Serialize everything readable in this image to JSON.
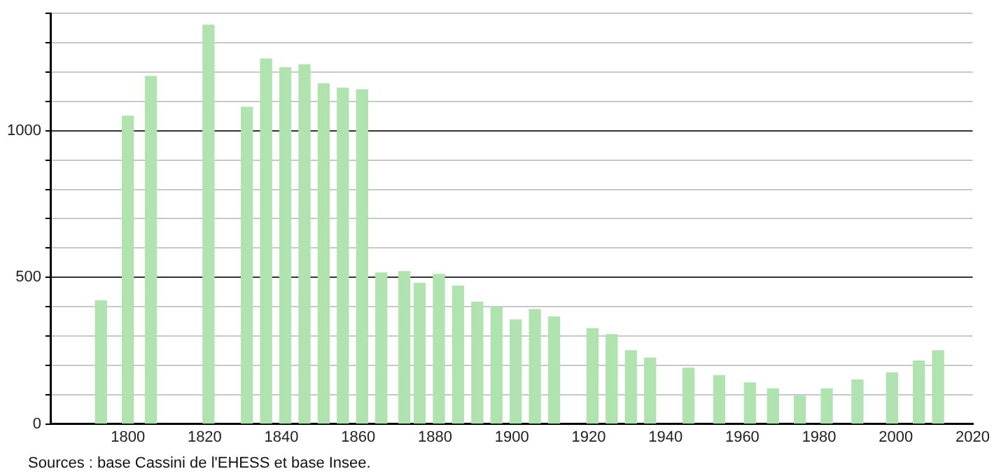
{
  "chart_data": {
    "type": "bar",
    "x": [
      1793,
      1800,
      1806,
      1821,
      1831,
      1836,
      1841,
      1846,
      1851,
      1856,
      1861,
      1866,
      1872,
      1876,
      1881,
      1886,
      1891,
      1896,
      1901,
      1906,
      1911,
      1921,
      1926,
      1931,
      1936,
      1946,
      1954,
      1962,
      1968,
      1975,
      1982,
      1990,
      1999,
      2006,
      2011
    ],
    "values": [
      420,
      1050,
      1185,
      1360,
      1080,
      1245,
      1215,
      1225,
      1160,
      1145,
      1140,
      515,
      520,
      480,
      510,
      470,
      415,
      400,
      355,
      390,
      365,
      325,
      305,
      250,
      225,
      190,
      165,
      140,
      120,
      95,
      120,
      150,
      175,
      215,
      250
    ],
    "color": "#b0e3b0",
    "xlim": [
      1780,
      2020
    ],
    "xticks": [
      1800,
      1820,
      1840,
      1860,
      1880,
      1900,
      1920,
      1940,
      1960,
      1980,
      2000,
      2020
    ],
    "ylim": [
      0,
      1400
    ],
    "yticks": [
      0,
      {
        "value": 100,
        "label": null
      },
      {
        "value": 200,
        "label": null
      },
      {
        "value": 300,
        "label": null
      },
      {
        "value": 400,
        "label": null
      },
      500,
      {
        "value": 600,
        "label": null
      },
      {
        "value": 700,
        "label": null
      },
      {
        "value": 800,
        "label": null
      },
      {
        "value": 900,
        "label": null
      },
      1000,
      {
        "value": 1100,
        "label": null
      },
      {
        "value": 1200,
        "label": null
      },
      {
        "value": 1300,
        "label": null
      },
      {
        "value": 1400,
        "label": null
      }
    ],
    "grid": "y",
    "legend": false,
    "annotations": [
      "Sources : base Cassini de l'EHESS et base Insee."
    ]
  }
}
